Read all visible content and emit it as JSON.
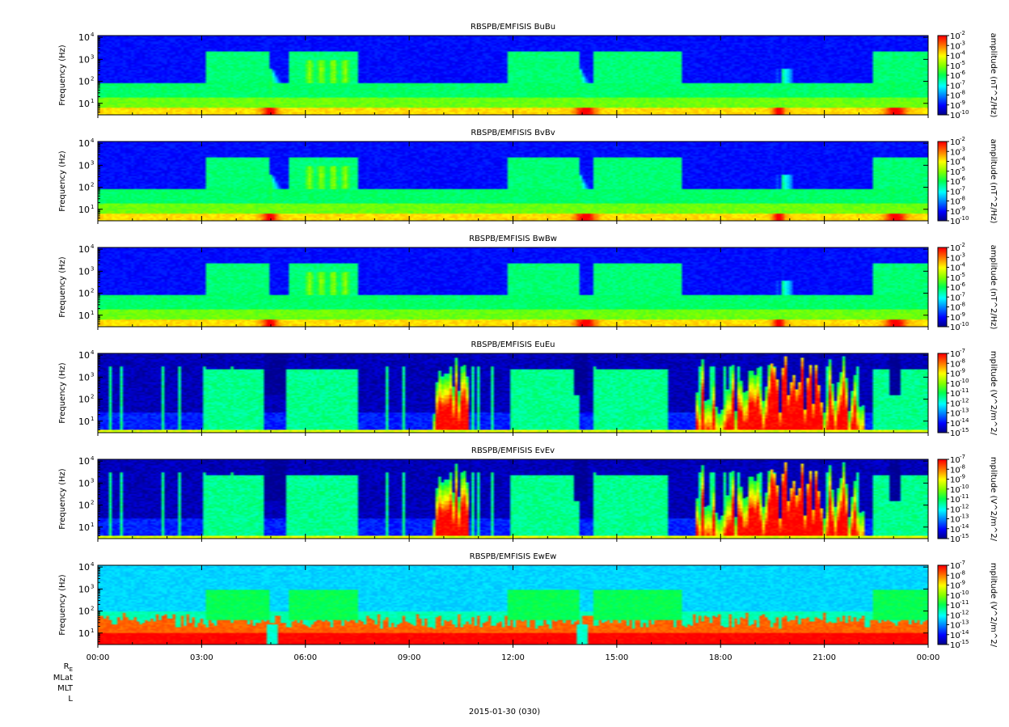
{
  "chart_data": {
    "type": "heatmap",
    "panels": [
      {
        "title": "RBSPB/EMFISIS  BuBu",
        "ylabel": "Frequency (Hz)",
        "colorbar_label": "amplitude (nT^2/Hz)",
        "colorbar_ticks": [
          "10-2",
          "10-3",
          "10-4",
          "10-5",
          "10-6",
          "10-7",
          "10-8",
          "10-9",
          "10-10"
        ],
        "scale": "B",
        "variant": "u"
      },
      {
        "title": "RBSPB/EMFISIS  BvBv",
        "ylabel": "Frequency (Hz)",
        "colorbar_label": "amplitude (nT^2/Hz)",
        "colorbar_ticks": [
          "10-2",
          "10-3",
          "10-4",
          "10-5",
          "10-6",
          "10-7",
          "10-8",
          "10-9",
          "10-10"
        ],
        "scale": "B",
        "variant": "v"
      },
      {
        "title": "RBSPB/EMFISIS  BwBw",
        "ylabel": "Frequency (Hz)",
        "colorbar_label": "amplitude (nT^2/Hz)",
        "colorbar_ticks": [
          "10-2",
          "10-3",
          "10-4",
          "10-5",
          "10-6",
          "10-7",
          "10-8",
          "10-9",
          "10-10"
        ],
        "scale": "B",
        "variant": "w"
      },
      {
        "title": "RBSPB/EMFISIS  EuEu",
        "ylabel": "Frequency (Hz)",
        "colorbar_label": "mplitude (V^2/m^2/",
        "colorbar_ticks": [
          "10-7",
          "10-8",
          "10-9",
          "10-10",
          "10-11",
          "10-12",
          "10-13",
          "10-14",
          "10-15"
        ],
        "scale": "E",
        "variant": "u"
      },
      {
        "title": "RBSPB/EMFISIS  EvEv",
        "ylabel": "Frequency (Hz)",
        "colorbar_label": "mplitude (V^2/m^2/",
        "colorbar_ticks": [
          "10-7",
          "10-8",
          "10-9",
          "10-10",
          "10-11",
          "10-12",
          "10-13",
          "10-14",
          "10-15"
        ],
        "scale": "E",
        "variant": "v"
      },
      {
        "title": "RBSPB/EMFISIS  EwEw",
        "ylabel": "Frequency (Hz)",
        "colorbar_label": "mplitude (V^2/m^2/",
        "colorbar_ticks": [
          "10-7",
          "10-8",
          "10-9",
          "10-10",
          "10-11",
          "10-12",
          "10-13",
          "10-14",
          "10-15"
        ],
        "scale": "Ew",
        "variant": "w"
      }
    ],
    "y_scale": "log",
    "ylim": [
      3,
      12000
    ],
    "y_ticks": [
      {
        "value": 10,
        "label": "10"
      },
      {
        "value": 100,
        "label": "10"
      },
      {
        "value": 1000,
        "label": "10"
      },
      {
        "value": 10000,
        "label": "10"
      }
    ],
    "y_tick_exponents": [
      "1",
      "2",
      "3",
      "4"
    ],
    "x_range_hours": [
      0,
      24
    ],
    "x_tick_hours": [
      0,
      3,
      6,
      9,
      12,
      15,
      18,
      21,
      24
    ],
    "x_tick_labels": [
      "00:00",
      "03:00",
      "06:00",
      "09:00",
      "12:00",
      "15:00",
      "18:00",
      "21:00",
      "00:00"
    ],
    "colormap": [
      "#00008f",
      "#0000ff",
      "#0080ff",
      "#00ffff",
      "#00ff80",
      "#80ff00",
      "#ffff00",
      "#ff8000",
      "#ff0000"
    ],
    "footer_labels": [
      "R",
      "MLat",
      "MLT",
      "L"
    ],
    "footer_r_subscript": "E",
    "date_label": "2015-01-30 (030)"
  }
}
